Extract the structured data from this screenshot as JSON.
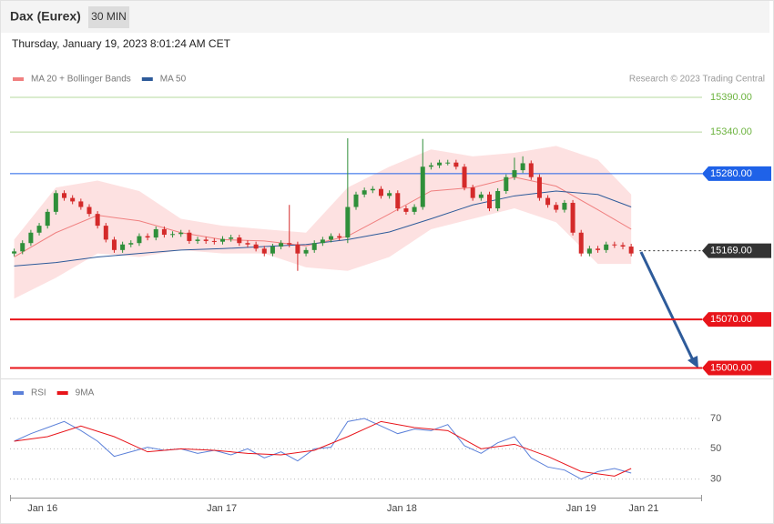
{
  "header": {
    "title": "Dax (Eurex)",
    "interval": "30 MIN"
  },
  "timestamp": "Thursday, January 19, 2023 8:01:24 AM CET",
  "credit": "Research © 2023 Trading Central",
  "chart_data": [
    {
      "type": "candlestick",
      "x": [
        0,
        1,
        2,
        3,
        4,
        5,
        6,
        7,
        8,
        9,
        10,
        11,
        12,
        13,
        14,
        15,
        16,
        17,
        18,
        19,
        20,
        21,
        22,
        23,
        24,
        25,
        26,
        27,
        28,
        29,
        30,
        31,
        32,
        33,
        34,
        35,
        36,
        37,
        38,
        39,
        40,
        41,
        42,
        43,
        44,
        45,
        46,
        47,
        48,
        49,
        50,
        51,
        52,
        53,
        54,
        55,
        56,
        57,
        58,
        59,
        60,
        61,
        62,
        63,
        64,
        65,
        66,
        67,
        68,
        69,
        70,
        71,
        72,
        73,
        74
      ],
      "open": [
        15165,
        15168,
        15180,
        15195,
        15205,
        15225,
        15252,
        15245,
        15240,
        15232,
        15222,
        15205,
        15185,
        15170,
        15178,
        15180,
        15190,
        15188,
        15200,
        15192,
        15193,
        15195,
        15183,
        15185,
        15183,
        15182,
        15186,
        15188,
        15180,
        15178,
        15172,
        15165,
        15175,
        15180,
        15178,
        15165,
        15170,
        15180,
        15185,
        15190,
        15188,
        15232,
        15250,
        15256,
        15258,
        15248,
        15252,
        15230,
        15225,
        15232,
        15290,
        15292,
        15296,
        15296,
        15290,
        15260,
        15245,
        15250,
        15230,
        15255,
        15275,
        15285,
        15295,
        15275,
        15245,
        15235,
        15228,
        15238,
        15195,
        15165,
        15172,
        15170,
        15178,
        15177,
        15175
      ],
      "high": [
        15172,
        15184,
        15199,
        15209,
        15229,
        15256,
        15256,
        15249,
        15244,
        15236,
        15226,
        15209,
        15189,
        15182,
        15184,
        15194,
        15194,
        15204,
        15204,
        15197,
        15199,
        15199,
        15189,
        15189,
        15187,
        15190,
        15192,
        15192,
        15184,
        15182,
        15176,
        15179,
        15184,
        15235,
        15182,
        15174,
        15184,
        15189,
        15194,
        15194,
        15331,
        15254,
        15260,
        15262,
        15262,
        15256,
        15256,
        15234,
        15236,
        15330,
        15296,
        15300,
        15300,
        15300,
        15294,
        15264,
        15254,
        15254,
        15259,
        15279,
        15303,
        15305,
        15299,
        15279,
        15249,
        15239,
        15242,
        15242,
        15199,
        15176,
        15176,
        15182,
        15182,
        15181,
        15179
      ],
      "low": [
        15161,
        15164,
        15176,
        15191,
        15201,
        15221,
        15241,
        15236,
        15228,
        15218,
        15201,
        15181,
        15166,
        15166,
        15174,
        15176,
        15184,
        15184,
        15188,
        15188,
        15189,
        15179,
        15179,
        15179,
        15178,
        15178,
        15182,
        15176,
        15174,
        15168,
        15161,
        15161,
        15171,
        15174,
        15140,
        15161,
        15166,
        15176,
        15181,
        15184,
        15180,
        15228,
        15246,
        15252,
        15244,
        15244,
        15226,
        15221,
        15221,
        15228,
        15286,
        15288,
        15292,
        15286,
        15256,
        15241,
        15241,
        15226,
        15226,
        15251,
        15271,
        15281,
        15271,
        15241,
        15231,
        15224,
        15224,
        15191,
        15161,
        15161,
        15166,
        15166,
        15173,
        15171,
        15161
      ],
      "close": [
        15168,
        15180,
        15195,
        15205,
        15225,
        15252,
        15245,
        15240,
        15232,
        15222,
        15205,
        15185,
        15170,
        15178,
        15180,
        15190,
        15188,
        15200,
        15192,
        15193,
        15195,
        15183,
        15185,
        15183,
        15182,
        15186,
        15188,
        15180,
        15178,
        15172,
        15165,
        15175,
        15180,
        15178,
        15165,
        15170,
        15180,
        15185,
        15190,
        15188,
        15232,
        15250,
        15256,
        15258,
        15248,
        15252,
        15230,
        15225,
        15232,
        15290,
        15292,
        15296,
        15296,
        15290,
        15260,
        15245,
        15250,
        15230,
        15255,
        15275,
        15285,
        15295,
        15275,
        15245,
        15235,
        15228,
        15238,
        15195,
        15165,
        15172,
        15170,
        15178,
        15177,
        15175,
        15165
      ],
      "up_color": "#2f8f3a",
      "down_color": "#d42a2a",
      "series": [
        {
          "name": "MA 20 + Bollinger Bands",
          "color": "#f08080",
          "band_color": "#fde1e1",
          "x": [
            0,
            5,
            10,
            15,
            20,
            25,
            30,
            35,
            40,
            45,
            50,
            55,
            60,
            65,
            70,
            74
          ],
          "values": [
            15160,
            15195,
            15220,
            15212,
            15195,
            15185,
            15183,
            15176,
            15190,
            15222,
            15255,
            15260,
            15275,
            15262,
            15228,
            15200
          ],
          "upper": [
            15185,
            15260,
            15270,
            15255,
            15215,
            15205,
            15200,
            15195,
            15260,
            15290,
            15315,
            15305,
            15310,
            15320,
            15300,
            15250
          ],
          "lower": [
            15100,
            15130,
            15165,
            15160,
            15170,
            15165,
            15165,
            15145,
            15140,
            15160,
            15200,
            15215,
            15230,
            15210,
            15150,
            15150
          ]
        },
        {
          "name": "MA 50",
          "color": "#2e5b9a",
          "x": [
            0,
            5,
            10,
            15,
            20,
            25,
            30,
            35,
            40,
            45,
            50,
            55,
            60,
            65,
            70,
            74
          ],
          "values": [
            15147,
            15152,
            15160,
            15165,
            15170,
            15172,
            15175,
            15178,
            15185,
            15196,
            15215,
            15235,
            15248,
            15255,
            15250,
            15232
          ]
        }
      ],
      "levels": [
        {
          "value": 15390,
          "label": "15390.00",
          "color": "#6cb33f",
          "tag": false
        },
        {
          "value": 15340,
          "label": "15340.00",
          "color": "#6cb33f",
          "tag": false
        },
        {
          "value": 15280,
          "label": "15280.00",
          "color": "#1f62e8",
          "tag": true
        },
        {
          "value": 15169,
          "label": "15169.00",
          "color": "#333333",
          "tag": true,
          "dash": true
        },
        {
          "value": 15070,
          "label": "15070.00",
          "color": "#e8141a",
          "tag": true
        },
        {
          "value": 15000,
          "label": "15000.00",
          "color": "#e8141a",
          "tag": true
        }
      ],
      "xlim": [
        -0.5,
        82.5
      ],
      "ylim": [
        14985,
        15445
      ]
    },
    {
      "type": "line",
      "series": [
        {
          "name": "RSI",
          "color": "#5b80d9",
          "x": [
            0,
            2,
            4,
            6,
            8,
            10,
            12,
            14,
            16,
            18,
            20,
            22,
            24,
            26,
            28,
            30,
            32,
            34,
            36,
            38,
            40,
            42,
            44,
            46,
            48,
            50,
            52,
            54,
            56,
            58,
            60,
            62,
            64,
            66,
            68,
            70,
            72,
            74
          ],
          "values": [
            55,
            60,
            64,
            68,
            62,
            55,
            45,
            48,
            51,
            49,
            50,
            47,
            49,
            46,
            50,
            44,
            48,
            42,
            50,
            51,
            68,
            70,
            65,
            60,
            63,
            62,
            66,
            52,
            47,
            54,
            58,
            44,
            38,
            36,
            30,
            35,
            37,
            34
          ]
        },
        {
          "name": "9MA",
          "color": "#e8141a",
          "x": [
            0,
            4,
            8,
            12,
            16,
            20,
            24,
            28,
            32,
            36,
            40,
            44,
            48,
            52,
            56,
            60,
            64,
            68,
            72,
            74
          ],
          "values": [
            55,
            58,
            65,
            58,
            48,
            50,
            49,
            47,
            46,
            49,
            58,
            68,
            64,
            62,
            50,
            53,
            45,
            35,
            32,
            37
          ]
        }
      ],
      "xlim": [
        -0.5,
        82.5
      ],
      "ylim": [
        19,
        82
      ],
      "yticks": [
        70,
        50,
        30
      ],
      "grid": true,
      "xticks": [
        {
          "value": 3.4,
          "label": "Jan 16"
        },
        {
          "value": 24.9,
          "label": "Jan 17"
        },
        {
          "value": 46.5,
          "label": "Jan 18"
        },
        {
          "value": 68,
          "label": "Jan 19"
        },
        {
          "value": 75.5,
          "label": "Jan 21"
        }
      ]
    }
  ]
}
